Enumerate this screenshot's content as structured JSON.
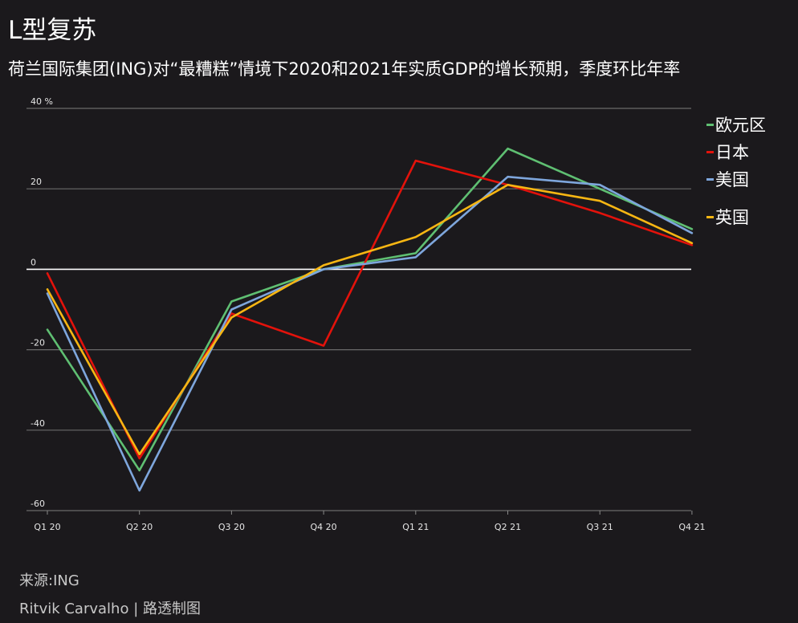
{
  "title": "L型复苏",
  "subtitle": "荷兰国际集团(ING)对“最糟糕”情境下2020和2021年实质GDP的增长预期，季度环比年率",
  "footer": {
    "source": "来源:ING",
    "credit": "Ritvik Carvalho | 路透制图"
  },
  "chart_data": {
    "type": "line",
    "categories": [
      "Q1 20",
      "Q2 20",
      "Q3 20",
      "Q4 20",
      "Q1 21",
      "Q2 21",
      "Q3 21",
      "Q4 21"
    ],
    "ylim": [
      -60,
      40
    ],
    "yticks": [
      40,
      20,
      0,
      -20,
      -40,
      -60
    ],
    "ytick_labels": [
      "40 %",
      "20",
      "0",
      "-20",
      "-40",
      "-60"
    ],
    "grid": true,
    "legend_position": "right",
    "series": [
      {
        "name": "欧元区",
        "color": "#5fbf72",
        "values": [
          -15,
          -50,
          -8,
          0,
          4,
          30,
          20,
          10
        ]
      },
      {
        "name": "日本",
        "color": "#e3120b",
        "values": [
          -1,
          -47,
          -11,
          -19,
          27,
          21,
          14,
          6
        ]
      },
      {
        "name": "美国",
        "color": "#7ea6dc",
        "values": [
          -6,
          -55,
          -10,
          0,
          3,
          23,
          21,
          9
        ]
      },
      {
        "name": "英国",
        "color": "#f7b613",
        "values": [
          -5,
          -46,
          -12,
          1,
          8,
          21,
          17,
          6.5
        ]
      }
    ]
  }
}
